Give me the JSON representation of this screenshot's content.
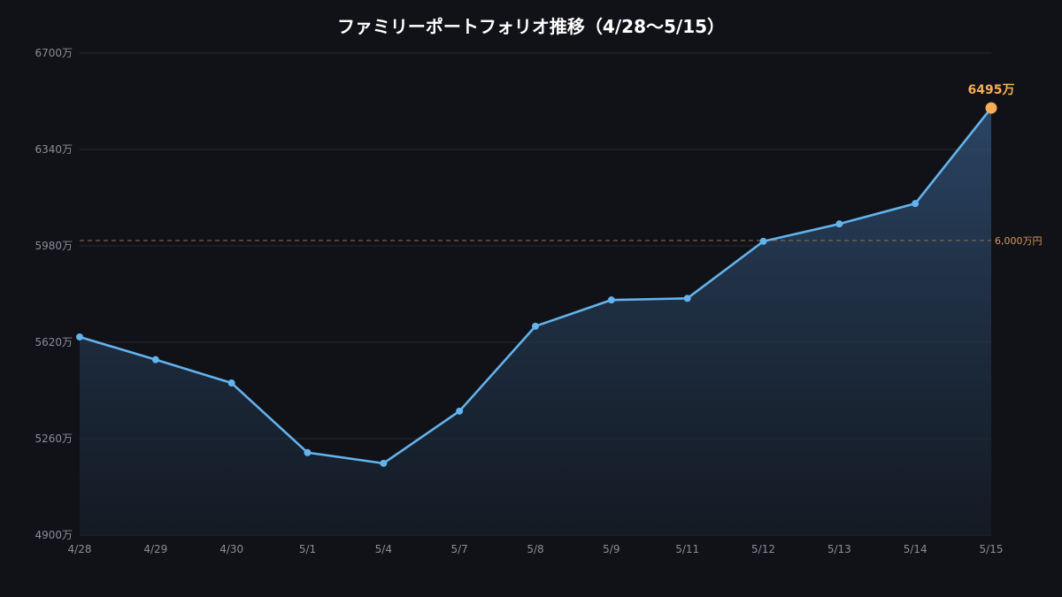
{
  "chart_data": {
    "type": "area",
    "title": "ファミリーポートフォリオ推移（4/28〜5/15）",
    "xlabel": "",
    "ylabel": "",
    "categories": [
      "4/28",
      "4/29",
      "4/30",
      "5/1",
      "5/4",
      "5/7",
      "5/8",
      "5/9",
      "5/11",
      "5/12",
      "5/13",
      "5/14",
      "5/15"
    ],
    "series": [
      {
        "values": [
          5640,
          5555,
          5468,
          5208,
          5168,
          5363,
          5680,
          5778,
          5784,
          5997,
          6062,
          6138,
          6495
        ]
      }
    ],
    "ylim": [
      4900,
      6700
    ],
    "yticks": [
      4900,
      5260,
      5620,
      5980,
      6340,
      6700
    ],
    "ytick_labels": [
      "4900万",
      "5260万",
      "5620万",
      "5980万",
      "6340万",
      "6700万"
    ],
    "reference_line": {
      "value": 6000,
      "label": "6,000万円"
    },
    "last_point_label": "6495万",
    "grid": true,
    "colors": {
      "line": "#63b3ed",
      "highlight": "#f6ad55",
      "reference": "#9c7450",
      "background": "#111217"
    }
  }
}
